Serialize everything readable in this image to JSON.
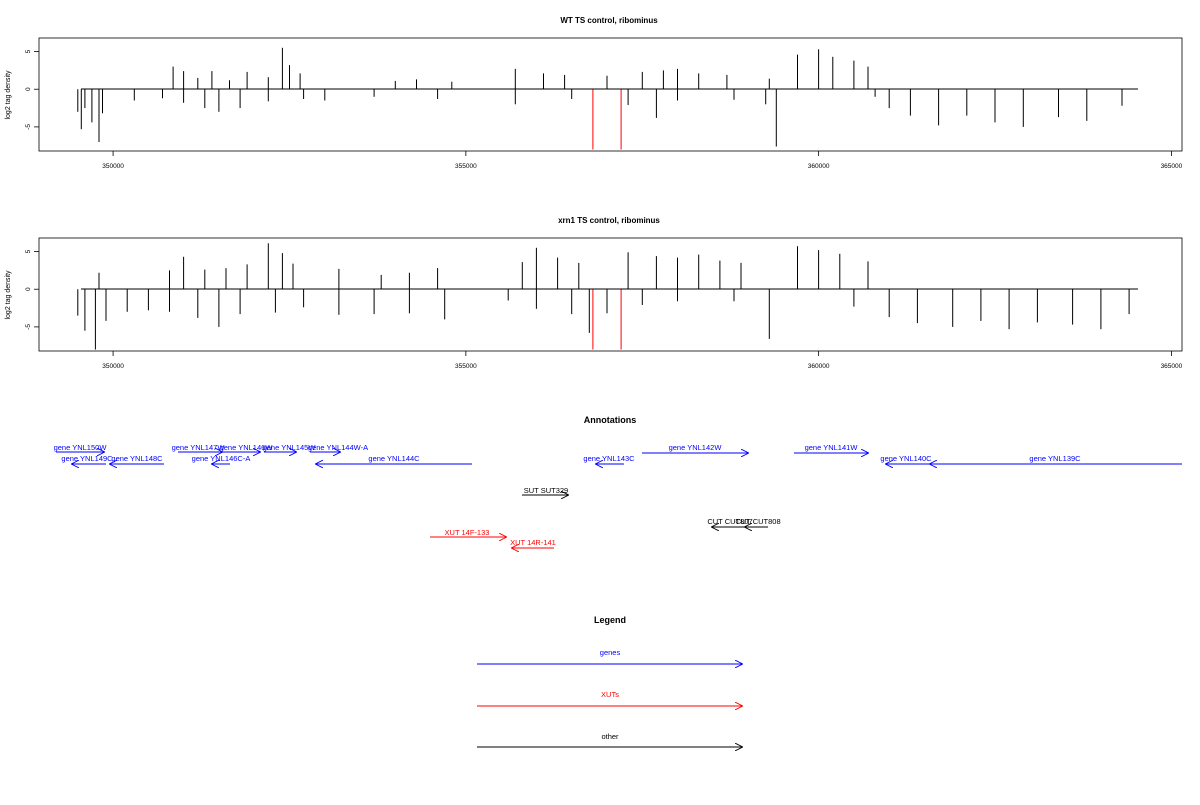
{
  "colors": {
    "genes": "#0000ff",
    "xuts": "#ff0000",
    "other": "#000000",
    "axis": "#000000"
  },
  "chart_data": [
    {
      "type": "bar",
      "title": "WT TS control, ribominus",
      "ylabel": "log2 tag density",
      "xlim": [
        348950,
        365150
      ],
      "ylim": [
        -8.2,
        6.8
      ],
      "xticks": [
        350000,
        355000,
        360000,
        365000
      ],
      "yticks": [
        5,
        0,
        -5
      ],
      "xtick_labels": [
        "350000",
        "355000",
        "360000",
        "365000"
      ],
      "ytick_labels": [
        "5",
        "0",
        "-5"
      ],
      "grid": false,
      "markers": [
        {
          "x": 356800,
          "color": "#ff0000"
        },
        {
          "x": 357200,
          "color": "#ff0000"
        }
      ],
      "series": [
        {
          "values": [
            [
              349500,
              -3
            ],
            [
              349550,
              -5.3
            ],
            [
              349600,
              -2.5
            ],
            [
              349700,
              -4.4
            ],
            [
              349800,
              -7
            ],
            [
              349850,
              -3.2
            ],
            [
              350300,
              -1.5
            ],
            [
              350700,
              -1.2
            ],
            [
              351000,
              -1.8
            ],
            [
              351300,
              -2.5
            ],
            [
              351500,
              -3
            ],
            [
              351800,
              -2.5
            ],
            [
              352200,
              -1.6
            ],
            [
              352700,
              -1.3
            ],
            [
              353000,
              -1.5
            ],
            [
              353700,
              -1
            ],
            [
              354600,
              -1.3
            ],
            [
              355700,
              -2
            ],
            [
              356500,
              -1.3
            ],
            [
              357300,
              -2.1
            ],
            [
              357700,
              -3.8
            ],
            [
              358000,
              -1.5
            ],
            [
              358800,
              -1.4
            ],
            [
              359250,
              -2
            ],
            [
              359400,
              -7.6
            ],
            [
              360800,
              -1
            ],
            [
              361000,
              -2.5
            ],
            [
              361300,
              -3.5
            ],
            [
              361700,
              -4.8
            ],
            [
              362100,
              -3.5
            ],
            [
              362500,
              -4.4
            ],
            [
              362900,
              -5
            ],
            [
              363400,
              -3.7
            ],
            [
              363800,
              -4.2
            ],
            [
              364300,
              -2.2
            ]
          ]
        },
        {
          "values": [
            [
              350850,
              3
            ],
            [
              351000,
              2.4
            ],
            [
              351200,
              1.5
            ],
            [
              351400,
              2.4
            ],
            [
              351650,
              1.2
            ],
            [
              351900,
              2.3
            ],
            [
              352200,
              1.6
            ],
            [
              352400,
              5.5
            ],
            [
              352500,
              3.2
            ],
            [
              352650,
              2.1
            ],
            [
              354000,
              1.1
            ],
            [
              354300,
              1.3
            ],
            [
              354800,
              1
            ],
            [
              355700,
              2.7
            ],
            [
              356100,
              2.1
            ],
            [
              356400,
              1.9
            ],
            [
              357000,
              1.8
            ],
            [
              357500,
              2.3
            ],
            [
              357800,
              2.5
            ],
            [
              358000,
              2.7
            ],
            [
              358300,
              2.1
            ],
            [
              358700,
              1.9
            ],
            [
              359300,
              1.4
            ],
            [
              359700,
              4.6
            ],
            [
              360000,
              5.3
            ],
            [
              360200,
              4.3
            ],
            [
              360500,
              3.8
            ],
            [
              360700,
              3
            ]
          ]
        }
      ]
    },
    {
      "type": "bar",
      "title": "xrn1 TS control, ribominus",
      "ylabel": "log2 tag density",
      "xlim": [
        348950,
        365150
      ],
      "ylim": [
        -8.2,
        6.8
      ],
      "xticks": [
        350000,
        355000,
        360000,
        365000
      ],
      "yticks": [
        5,
        0,
        -5
      ],
      "xtick_labels": [
        "350000",
        "355000",
        "360000",
        "365000"
      ],
      "ytick_labels": [
        "5",
        "0",
        "-5"
      ],
      "grid": false,
      "markers": [
        {
          "x": 356800,
          "color": "#ff0000"
        },
        {
          "x": 357200,
          "color": "#ff0000"
        }
      ],
      "series": [
        {
          "values": [
            [
              349500,
              -3.5
            ],
            [
              349600,
              -5.5
            ],
            [
              349750,
              -8
            ],
            [
              349900,
              -4.2
            ],
            [
              350200,
              -3
            ],
            [
              350500,
              -2.8
            ],
            [
              350800,
              -3
            ],
            [
              351200,
              -3.8
            ],
            [
              351500,
              -5
            ],
            [
              351800,
              -3.3
            ],
            [
              352300,
              -3.1
            ],
            [
              352700,
              -2.4
            ],
            [
              353200,
              -3.4
            ],
            [
              353700,
              -3.3
            ],
            [
              354200,
              -3.2
            ],
            [
              354700,
              -4
            ],
            [
              355600,
              -1.5
            ],
            [
              356000,
              -2.6
            ],
            [
              356500,
              -3.3
            ],
            [
              356750,
              -5.8
            ],
            [
              357000,
              -3.2
            ],
            [
              357500,
              -2.1
            ],
            [
              358000,
              -1.6
            ],
            [
              358800,
              -1.6
            ],
            [
              359300,
              -6.6
            ],
            [
              360500,
              -2.3
            ],
            [
              361000,
              -3.7
            ],
            [
              361400,
              -4.5
            ],
            [
              361900,
              -5
            ],
            [
              362300,
              -4.2
            ],
            [
              362700,
              -5.3
            ],
            [
              363100,
              -4.4
            ],
            [
              363600,
              -4.7
            ],
            [
              364000,
              -5.3
            ],
            [
              364400,
              -3.3
            ]
          ]
        },
        {
          "values": [
            [
              349800,
              2.2
            ],
            [
              350800,
              2.5
            ],
            [
              351000,
              4.3
            ],
            [
              351300,
              2.6
            ],
            [
              351600,
              2.8
            ],
            [
              351900,
              3.3
            ],
            [
              352200,
              6.1
            ],
            [
              352400,
              4.8
            ],
            [
              352550,
              3.4
            ],
            [
              353200,
              2.7
            ],
            [
              353800,
              1.9
            ],
            [
              354200,
              2.2
            ],
            [
              354600,
              2.8
            ],
            [
              355800,
              3.6
            ],
            [
              356000,
              5.5
            ],
            [
              356300,
              4.2
            ],
            [
              356600,
              3.5
            ],
            [
              357300,
              4.9
            ],
            [
              357700,
              4.4
            ],
            [
              358000,
              4.2
            ],
            [
              358300,
              4.6
            ],
            [
              358600,
              3.8
            ],
            [
              358900,
              3.5
            ],
            [
              359700,
              5.7
            ],
            [
              360000,
              5.2
            ],
            [
              360300,
              4.7
            ],
            [
              360700,
              3.7
            ]
          ]
        }
      ]
    }
  ],
  "annotations": {
    "title": "Annotations",
    "items": [
      {
        "label": "gene YNL150W",
        "color": "#0000ff",
        "dir": "right"
      },
      {
        "label": "gene YNL149C",
        "color": "#0000ff",
        "dir": "left"
      },
      {
        "label": "gene YNL148C",
        "color": "#0000ff",
        "dir": "left"
      },
      {
        "label": "gene YNL147W",
        "color": "#0000ff",
        "dir": "right"
      },
      {
        "label": "gene YNL146C-A",
        "color": "#0000ff",
        "dir": "left"
      },
      {
        "label": "gene YNL146W",
        "color": "#0000ff",
        "dir": "right"
      },
      {
        "label": "gene YNL145W",
        "color": "#0000ff",
        "dir": "right"
      },
      {
        "label": "gene YNL144W-A",
        "color": "#0000ff",
        "dir": "right"
      },
      {
        "label": "gene YNL144C",
        "color": "#0000ff",
        "dir": "left"
      },
      {
        "label": "gene YNL143C",
        "color": "#0000ff",
        "dir": "left"
      },
      {
        "label": "gene YNL142W",
        "color": "#0000ff",
        "dir": "right"
      },
      {
        "label": "gene YNL141W",
        "color": "#0000ff",
        "dir": "right"
      },
      {
        "label": "gene YNL140C",
        "color": "#0000ff",
        "dir": "left"
      },
      {
        "label": "gene YNL139C",
        "color": "#0000ff",
        "dir": "left"
      },
      {
        "label": "SUT SUT329",
        "color": "#000000",
        "dir": "right"
      },
      {
        "label": "CUT CUT807",
        "color": "#000000",
        "dir": "left"
      },
      {
        "label": "CUT CUT808",
        "color": "#000000",
        "dir": "left"
      },
      {
        "label": "XUT 14F-133",
        "color": "#ff0000",
        "dir": "right"
      },
      {
        "label": "XUT 14R-141",
        "color": "#ff0000",
        "dir": "left"
      }
    ]
  },
  "legend": {
    "title": "Legend",
    "items": [
      {
        "label": "genes",
        "color": "#0000ff"
      },
      {
        "label": "XUTs",
        "color": "#ff0000"
      },
      {
        "label": "other",
        "color": "#000000"
      }
    ]
  }
}
